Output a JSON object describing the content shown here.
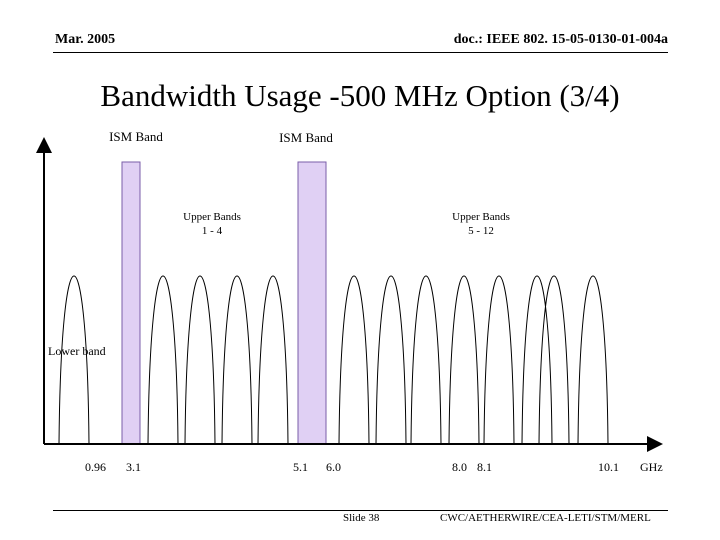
{
  "header": {
    "date": "Mar. 2005",
    "doc_id": "doc.: IEEE 802. 15-05-0130-01-004a"
  },
  "title": "Bandwidth Usage -500 MHz Option (3/4)",
  "footer": {
    "slide": "Slide 38",
    "authors": "CWC/AETHERWIRE/CEA-LETI/STM/MERL"
  },
  "diagram": {
    "band_labels": {
      "ism_1": "ISM Band",
      "ism_2": "ISM Band",
      "upper_1_line1": "Upper Bands",
      "upper_1_line2": "1 - 4",
      "upper_2_line1": "Upper Bands",
      "upper_2_line2": "5 - 12",
      "lower": "Lower band"
    },
    "axis_ticks": [
      "0.96",
      "3.1",
      "5.1",
      "6.0",
      "8.0",
      "8.1",
      "10.1"
    ],
    "axis_unit": "GHz",
    "colors": {
      "ism_fill": "#e0d0f4",
      "ism_stroke": "#7a5ea8",
      "curve": "#000000"
    }
  }
}
